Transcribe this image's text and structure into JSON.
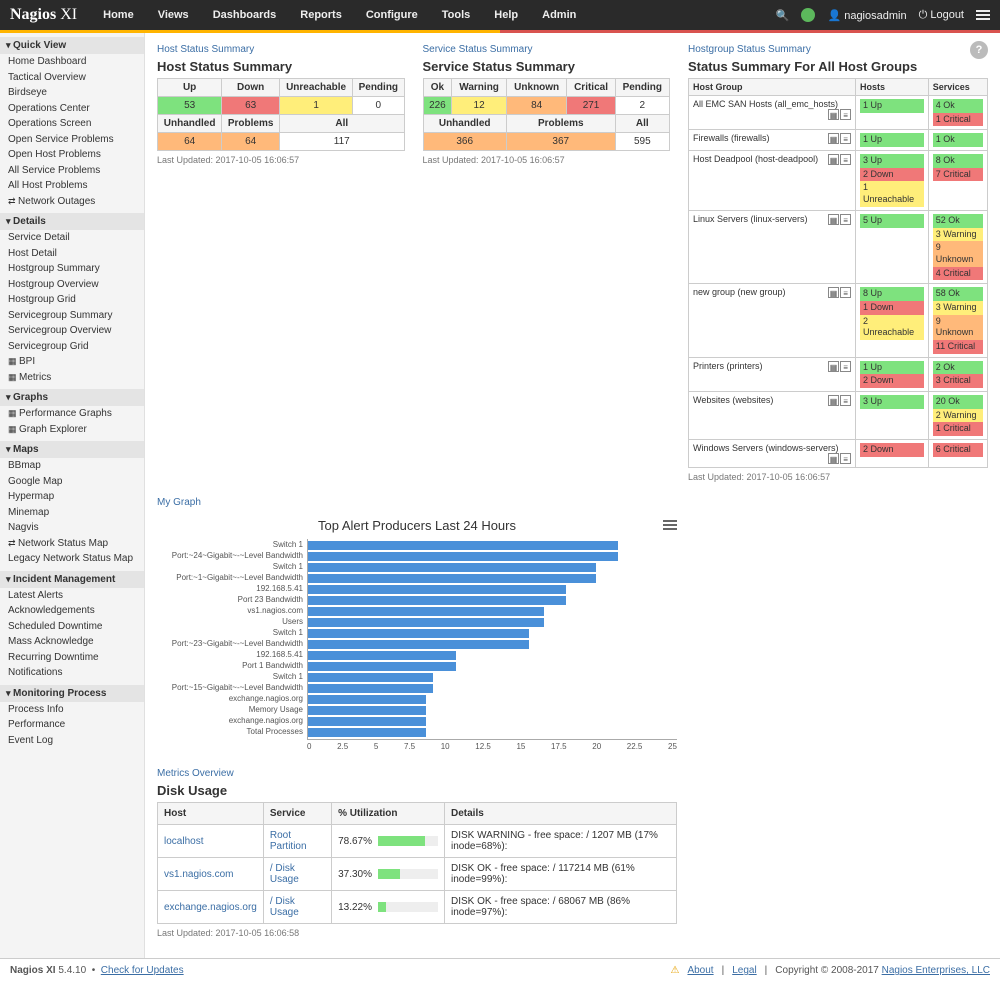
{
  "brand": "Nagios",
  "brand_suffix": "XI",
  "topnav": [
    "Home",
    "Views",
    "Dashboards",
    "Reports",
    "Configure",
    "Tools",
    "Help",
    "Admin"
  ],
  "user": "nagiosadmin",
  "logout": "Logout",
  "sidebar": {
    "quick_view": {
      "title": "Quick View",
      "items": [
        "Home Dashboard",
        "Tactical Overview",
        "Birdseye",
        "Operations Center",
        "Operations Screen",
        "Open Service Problems",
        "Open Host Problems",
        "All Service Problems",
        "All Host Problems",
        "Network Outages"
      ]
    },
    "details": {
      "title": "Details",
      "items": [
        "Service Detail",
        "Host Detail",
        "Hostgroup Summary",
        "Hostgroup Overview",
        "Hostgroup Grid",
        "Servicegroup Summary",
        "Servicegroup Overview",
        "Servicegroup Grid",
        "BPI",
        "Metrics"
      ]
    },
    "graphs": {
      "title": "Graphs",
      "items": [
        "Performance Graphs",
        "Graph Explorer"
      ]
    },
    "maps": {
      "title": "Maps",
      "items": [
        "BBmap",
        "Google Map",
        "Hypermap",
        "Minemap",
        "Nagvis",
        "Network Status Map",
        "Legacy Network Status Map"
      ]
    },
    "incident": {
      "title": "Incident Management",
      "items": [
        "Latest Alerts",
        "Acknowledgements",
        "Scheduled Downtime",
        "Mass Acknowledge",
        "Recurring Downtime",
        "Notifications"
      ]
    },
    "monitoring": {
      "title": "Monitoring Process",
      "items": [
        "Process Info",
        "Performance",
        "Event Log"
      ]
    }
  },
  "host_summary": {
    "label": "Host Status Summary",
    "title": "Host Status Summary",
    "hdr": [
      "Up",
      "Down",
      "Unreachable",
      "Pending"
    ],
    "row": [
      {
        "v": "53",
        "c": "g"
      },
      {
        "v": "63",
        "c": "r"
      },
      {
        "v": "1",
        "c": "y"
      },
      {
        "v": "0",
        "c": ""
      }
    ],
    "hdr2": [
      "Unhandled",
      "Problems",
      "All"
    ],
    "row2": [
      {
        "v": "64",
        "c": "o"
      },
      {
        "v": "64",
        "c": "o"
      },
      {
        "v": "117",
        "c": ""
      }
    ],
    "updated": "Last Updated: 2017-10-05 16:06:57"
  },
  "service_summary": {
    "label": "Service Status Summary",
    "title": "Service Status Summary",
    "hdr": [
      "Ok",
      "Warning",
      "Unknown",
      "Critical",
      "Pending"
    ],
    "row": [
      {
        "v": "226",
        "c": "g"
      },
      {
        "v": "12",
        "c": "y"
      },
      {
        "v": "84",
        "c": "o"
      },
      {
        "v": "271",
        "c": "r"
      },
      {
        "v": "2",
        "c": ""
      }
    ],
    "hdr2": [
      "Unhandled",
      "Problems",
      "All"
    ],
    "row2": [
      {
        "v": "366",
        "c": "o"
      },
      {
        "v": "367",
        "c": "o"
      },
      {
        "v": "595",
        "c": ""
      }
    ],
    "updated": "Last Updated: 2017-10-05 16:06:57"
  },
  "graph": {
    "label": "My Graph",
    "title": "Top Alert Producers Last 24 Hours",
    "xmax": 25,
    "xticks": [
      "0",
      "2.5",
      "5",
      "7.5",
      "10",
      "12.5",
      "15",
      "17.5",
      "20",
      "22.5",
      "25"
    ],
    "bars": [
      {
        "label": "Switch 1",
        "v": 21
      },
      {
        "label": "Port:~24~Gigabit~-~Level Bandwidth",
        "v": 21
      },
      {
        "label": "Switch 1",
        "v": 19.5
      },
      {
        "label": "Port:~1~Gigabit~-~Level Bandwidth",
        "v": 19.5
      },
      {
        "label": "192.168.5.41",
        "v": 17.5
      },
      {
        "label": "Port 23 Bandwidth",
        "v": 17.5
      },
      {
        "label": "vs1.nagios.com",
        "v": 16
      },
      {
        "label": "Users",
        "v": 16
      },
      {
        "label": "Switch 1",
        "v": 15
      },
      {
        "label": "Port:~23~Gigabit~-~Level Bandwidth",
        "v": 15
      },
      {
        "label": "192.168.5.41",
        "v": 10
      },
      {
        "label": "Port 1 Bandwidth",
        "v": 10
      },
      {
        "label": "Switch 1",
        "v": 8.5
      },
      {
        "label": "Port:~15~Gigabit~-~Level Bandwidth",
        "v": 8.5
      },
      {
        "label": "exchange.nagios.org",
        "v": 8
      },
      {
        "label": "Memory Usage",
        "v": 8
      },
      {
        "label": "exchange.nagios.org",
        "v": 8
      },
      {
        "label": "Total Processes",
        "v": 8
      }
    ],
    "bar_color": "#4a90d9"
  },
  "metrics": {
    "label": "Metrics Overview",
    "title": "Disk Usage",
    "cols": [
      "Host",
      "Service",
      "% Utilization",
      "Details"
    ],
    "rows": [
      {
        "host": "localhost",
        "svc": "Root Partition",
        "pct": "78.67%",
        "pctv": 78.67,
        "det": "DISK WARNING - free space: / 1207 MB (17% inode=68%):"
      },
      {
        "host": "vs1.nagios.com",
        "svc": "/ Disk Usage",
        "pct": "37.30%",
        "pctv": 37.3,
        "det": "DISK OK - free space: / 117214 MB (61% inode=99%):"
      },
      {
        "host": "exchange.nagios.org",
        "svc": "/ Disk Usage",
        "pct": "13.22%",
        "pctv": 13.22,
        "det": "DISK OK - free space: / 68067 MB (86% inode=97%):"
      }
    ],
    "updated": "Last Updated: 2017-10-05 16:06:58"
  },
  "hostgroup": {
    "label": "Hostgroup Status Summary",
    "title": "Status Summary For All Host Groups",
    "cols": [
      "Host Group",
      "Hosts",
      "Services"
    ],
    "rows": [
      {
        "name": "All EMC SAN Hosts (all_emc_hosts)",
        "hosts": [
          {
            "t": "1 Up",
            "c": "g"
          }
        ],
        "svcs": [
          {
            "t": "4 Ok",
            "c": "g"
          },
          {
            "t": "1 Critical",
            "c": "r"
          }
        ]
      },
      {
        "name": "Firewalls (firewalls)",
        "hosts": [
          {
            "t": "1 Up",
            "c": "g"
          }
        ],
        "svcs": [
          {
            "t": "1 Ok",
            "c": "g"
          }
        ]
      },
      {
        "name": "Host Deadpool (host-deadpool)",
        "hosts": [
          {
            "t": "3 Up",
            "c": "g"
          },
          {
            "t": "2 Down",
            "c": "r"
          },
          {
            "t": "1 Unreachable",
            "c": "y"
          }
        ],
        "svcs": [
          {
            "t": "8 Ok",
            "c": "g"
          },
          {
            "t": "7 Critical",
            "c": "r"
          }
        ]
      },
      {
        "name": "Linux Servers (linux-servers)",
        "hosts": [
          {
            "t": "5 Up",
            "c": "g"
          }
        ],
        "svcs": [
          {
            "t": "52 Ok",
            "c": "g"
          },
          {
            "t": "3 Warning",
            "c": "y"
          },
          {
            "t": "9 Unknown",
            "c": "o"
          },
          {
            "t": "4 Critical",
            "c": "r"
          }
        ]
      },
      {
        "name": "new group (new group)",
        "hosts": [
          {
            "t": "8 Up",
            "c": "g"
          },
          {
            "t": "1 Down",
            "c": "r"
          },
          {
            "t": "2 Unreachable",
            "c": "y"
          }
        ],
        "svcs": [
          {
            "t": "58 Ok",
            "c": "g"
          },
          {
            "t": "3 Warning",
            "c": "y"
          },
          {
            "t": "9 Unknown",
            "c": "o"
          },
          {
            "t": "11 Critical",
            "c": "r"
          }
        ]
      },
      {
        "name": "Printers (printers)",
        "hosts": [
          {
            "t": "1 Up",
            "c": "g"
          },
          {
            "t": "2 Down",
            "c": "r"
          }
        ],
        "svcs": [
          {
            "t": "2 Ok",
            "c": "g"
          },
          {
            "t": "3 Critical",
            "c": "r"
          }
        ]
      },
      {
        "name": "Websites (websites)",
        "hosts": [
          {
            "t": "3 Up",
            "c": "g"
          }
        ],
        "svcs": [
          {
            "t": "20 Ok",
            "c": "g"
          },
          {
            "t": "2 Warning",
            "c": "y"
          },
          {
            "t": "1 Critical",
            "c": "r"
          }
        ]
      },
      {
        "name": "Windows Servers (windows-servers)",
        "hosts": [
          {
            "t": "2 Down",
            "c": "r"
          }
        ],
        "svcs": [
          {
            "t": "6 Critical",
            "c": "r"
          }
        ]
      }
    ],
    "updated": "Last Updated: 2017-10-05 16:06:57"
  },
  "footer": {
    "product": "Nagios XI",
    "version": "5.4.10",
    "check": "Check for Updates",
    "about": "About",
    "legal": "Legal",
    "copyright": "Copyright © 2008-2017",
    "company": "Nagios Enterprises, LLC"
  }
}
